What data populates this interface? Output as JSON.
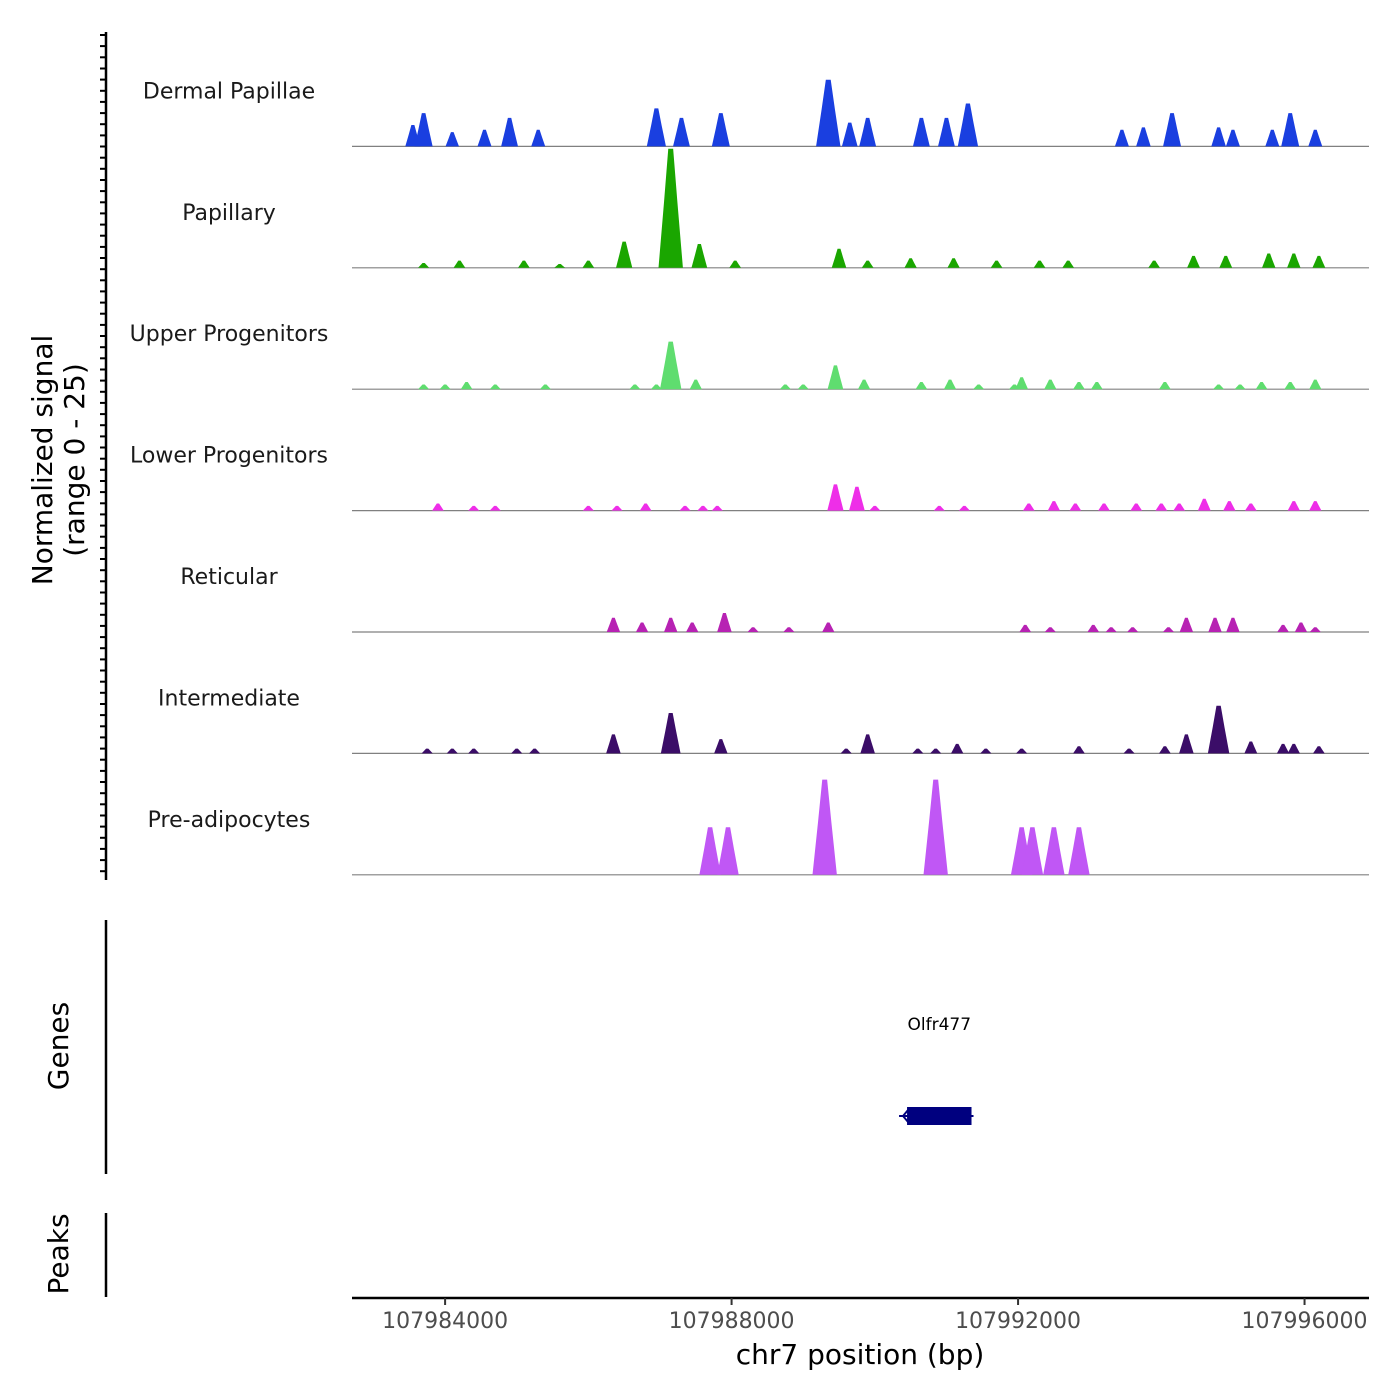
{
  "chart_data": {
    "type": "area",
    "y_axis_title_line1": "Normalized signal",
    "y_axis_title_line2": "(range 0 - 25)",
    "ylim": [
      0,
      25
    ],
    "x_axis_title": "chr7 position (bp)",
    "xlim": [
      107982700,
      107996900
    ],
    "x_ticks": [
      107984000,
      107988000,
      107992000,
      107996000
    ],
    "x_tick_labels": [
      "107984000",
      "107988000",
      "107992000",
      "107996000"
    ],
    "tracks": [
      {
        "name": "Dermal Papillae",
        "color": "#1a3fe0",
        "peaks": [
          [
            107983550,
            4.5
          ],
          [
            107983700,
            7
          ],
          [
            107984100,
            3
          ],
          [
            107984550,
            3.5
          ],
          [
            107984900,
            6
          ],
          [
            107985300,
            3.5
          ],
          [
            107986950,
            8
          ],
          [
            107987300,
            6
          ],
          [
            107987850,
            7
          ],
          [
            107989350,
            14
          ],
          [
            107989650,
            5
          ],
          [
            107989900,
            6
          ],
          [
            107990650,
            6
          ],
          [
            107991000,
            6
          ],
          [
            107991300,
            9
          ],
          [
            107993450,
            3.5
          ],
          [
            107993750,
            4
          ],
          [
            107994150,
            7
          ],
          [
            107994800,
            4
          ],
          [
            107995000,
            3.5
          ],
          [
            107995550,
            3.5
          ],
          [
            107995800,
            7
          ],
          [
            107996150,
            3.5
          ]
        ]
      },
      {
        "name": "Papillary",
        "color": "#1aa600",
        "peaks": [
          [
            107983700,
            1
          ],
          [
            107984200,
            1.5
          ],
          [
            107985100,
            1.5
          ],
          [
            107985600,
            0.8
          ],
          [
            107986000,
            1.5
          ],
          [
            107986500,
            5.5
          ],
          [
            107987150,
            25
          ],
          [
            107987550,
            5
          ],
          [
            107988050,
            1.5
          ],
          [
            107989500,
            4
          ],
          [
            107989900,
            1.5
          ],
          [
            107990500,
            2
          ],
          [
            107991100,
            2
          ],
          [
            107991700,
            1.5
          ],
          [
            107992300,
            1.5
          ],
          [
            107992700,
            1.5
          ],
          [
            107993900,
            1.5
          ],
          [
            107994450,
            2.5
          ],
          [
            107994900,
            2.5
          ],
          [
            107995500,
            3
          ],
          [
            107995850,
            3
          ],
          [
            107996200,
            2.5
          ]
        ]
      },
      {
        "name": "Upper Progenitors",
        "color": "#5fdd6f",
        "peaks": [
          [
            107983700,
            1
          ],
          [
            107984000,
            1
          ],
          [
            107984300,
            1.5
          ],
          [
            107984700,
            1
          ],
          [
            107985400,
            1
          ],
          [
            107986650,
            1
          ],
          [
            107986950,
            1
          ],
          [
            107987150,
            10
          ],
          [
            107987500,
            2
          ],
          [
            107988750,
            1
          ],
          [
            107989000,
            1
          ],
          [
            107989450,
            5
          ],
          [
            107989850,
            2
          ],
          [
            107990650,
            1.5
          ],
          [
            107991050,
            2
          ],
          [
            107991450,
            1
          ],
          [
            107991950,
            1
          ],
          [
            107992050,
            2.5
          ],
          [
            107992450,
            2
          ],
          [
            107992850,
            1.5
          ],
          [
            107993100,
            1.5
          ],
          [
            107994050,
            1.5
          ],
          [
            107994800,
            1
          ],
          [
            107995100,
            1
          ],
          [
            107995400,
            1.5
          ],
          [
            107995800,
            1.5
          ],
          [
            107996150,
            2
          ]
        ]
      },
      {
        "name": "Lower Progenitors",
        "color": "#ee2ee8",
        "peaks": [
          [
            107983900,
            1.5
          ],
          [
            107984400,
            1
          ],
          [
            107984700,
            1
          ],
          [
            107986000,
            1
          ],
          [
            107986400,
            1
          ],
          [
            107986800,
            1.5
          ],
          [
            107987350,
            1
          ],
          [
            107987600,
            1
          ],
          [
            107987800,
            1
          ],
          [
            107989450,
            5.5
          ],
          [
            107989750,
            5
          ],
          [
            107990000,
            1
          ],
          [
            107990900,
            1
          ],
          [
            107991250,
            1
          ],
          [
            107992150,
            1.5
          ],
          [
            107992500,
            2
          ],
          [
            107992800,
            1.5
          ],
          [
            107993200,
            1.5
          ],
          [
            107993650,
            1.5
          ],
          [
            107994000,
            1.5
          ],
          [
            107994250,
            1.5
          ],
          [
            107994600,
            2.5
          ],
          [
            107994950,
            2
          ],
          [
            107995250,
            1.5
          ],
          [
            107995850,
            2
          ],
          [
            107996150,
            2
          ]
        ]
      },
      {
        "name": "Reticular",
        "color": "#b722b3",
        "peaks": [
          [
            107986350,
            3
          ],
          [
            107986750,
            2
          ],
          [
            107987150,
            3
          ],
          [
            107987450,
            2
          ],
          [
            107987900,
            4
          ],
          [
            107988300,
            1
          ],
          [
            107988800,
            1
          ],
          [
            107989350,
            2
          ],
          [
            107992100,
            1.5
          ],
          [
            107992450,
            1
          ],
          [
            107993050,
            1.5
          ],
          [
            107993300,
            1
          ],
          [
            107993600,
            1
          ],
          [
            107994100,
            1
          ],
          [
            107994350,
            3
          ],
          [
            107994750,
            3
          ],
          [
            107995000,
            3
          ],
          [
            107995700,
            1.5
          ],
          [
            107995950,
            2
          ],
          [
            107996150,
            1
          ]
        ]
      },
      {
        "name": "Intermediate",
        "color": "#3b0d68",
        "peaks": [
          [
            107983750,
            1
          ],
          [
            107984100,
            1
          ],
          [
            107984400,
            1
          ],
          [
            107985000,
            1
          ],
          [
            107985250,
            1
          ],
          [
            107986350,
            4
          ],
          [
            107987150,
            8.5
          ],
          [
            107987850,
            3
          ],
          [
            107989600,
            1
          ],
          [
            107989900,
            4
          ],
          [
            107990600,
            1
          ],
          [
            107990850,
            1
          ],
          [
            107991150,
            2
          ],
          [
            107991550,
            1
          ],
          [
            107992050,
            1
          ],
          [
            107992850,
            1.5
          ],
          [
            107993550,
            1
          ],
          [
            107994050,
            1.5
          ],
          [
            107994350,
            4
          ],
          [
            107994800,
            10
          ],
          [
            107995250,
            2.5
          ],
          [
            107995700,
            2
          ],
          [
            107995850,
            2
          ],
          [
            107996200,
            1.5
          ]
        ]
      },
      {
        "name": "Pre-adipocytes",
        "color": "#c057f5",
        "peaks": [
          [
            107987700,
            10
          ],
          [
            107987950,
            10
          ],
          [
            107989300,
            20
          ],
          [
            107990850,
            20
          ],
          [
            107992050,
            10
          ],
          [
            107992200,
            10
          ],
          [
            107992500,
            10
          ],
          [
            107992850,
            10
          ]
        ]
      }
    ],
    "genes_track_label": "Genes",
    "peaks_track_label": "Peaks",
    "genes": [
      {
        "name": "Olfr477",
        "start": 107990450,
        "end": 107991350,
        "strand": "-",
        "color": "#00007f"
      }
    ]
  }
}
